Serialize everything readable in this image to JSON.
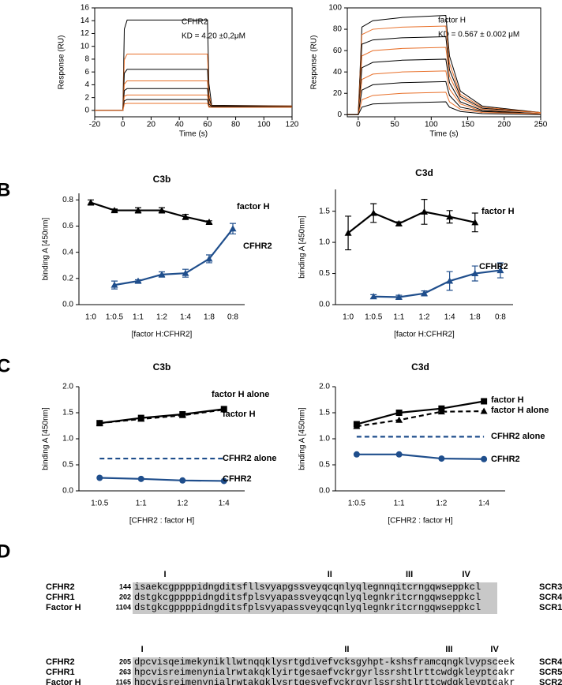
{
  "panel_labels": [
    "B",
    "C",
    "D"
  ],
  "chart_data": [
    {
      "type": "line",
      "ylabel": "Response (RU)",
      "xlabel": "Time (s)",
      "annotations": [
        "CFHR2",
        "KD = 4.20 ±0,2μM"
      ],
      "x": [
        -20,
        0,
        1,
        3,
        60,
        61,
        63,
        120
      ],
      "xlim": [
        -20,
        120
      ],
      "xticks": [
        -20,
        0,
        20,
        40,
        60,
        80,
        100,
        120
      ],
      "ylim": [
        -1,
        16
      ],
      "yticks": [
        0,
        2,
        4,
        6,
        8,
        10,
        12,
        14,
        16
      ],
      "series": [
        {
          "color": "#000000",
          "values": [
            0,
            0,
            12.7,
            14.1,
            14.1,
            4.2,
            0.8,
            0.7
          ]
        },
        {
          "color": "#e8702a",
          "values": [
            0,
            0,
            7.9,
            8.8,
            8.8,
            2.6,
            0.7,
            0.7
          ]
        },
        {
          "color": "#000000",
          "values": [
            0,
            0,
            5.8,
            6.4,
            6.4,
            1.9,
            0.7,
            0.6
          ]
        },
        {
          "color": "#e8702a",
          "values": [
            0,
            0,
            4.1,
            4.6,
            4.6,
            1.4,
            0.6,
            0.6
          ]
        },
        {
          "color": "#000000",
          "values": [
            0,
            0,
            3.1,
            3.4,
            3.4,
            1.0,
            0.6,
            0.6
          ]
        },
        {
          "color": "#e8702a",
          "values": [
            0,
            0,
            2.2,
            2.4,
            2.4,
            0.7,
            0.5,
            0.5
          ]
        },
        {
          "color": "#000000",
          "values": [
            0,
            0,
            1.5,
            1.7,
            1.7,
            0.6,
            0.5,
            0.5
          ]
        },
        {
          "color": "#e8702a",
          "values": [
            0,
            0,
            1.0,
            1.1,
            1.1,
            0.5,
            0.5,
            0.5
          ]
        }
      ]
    },
    {
      "type": "line",
      "ylabel": "Response (RU)",
      "xlabel": "Time (s)",
      "annotations": [
        "factor H",
        "KD = 0.567 ± 0.002 μM"
      ],
      "x": [
        -15,
        0,
        5,
        20,
        60,
        120,
        125,
        140,
        170,
        250
      ],
      "xlim": [
        -15,
        250
      ],
      "xticks": [
        0,
        50,
        100,
        150,
        200,
        250
      ],
      "ylim": [
        -2,
        100
      ],
      "yticks": [
        0,
        20,
        40,
        60,
        80,
        100
      ],
      "series": [
        {
          "color": "#000000",
          "values": [
            0,
            0,
            82,
            88,
            91,
            93,
            55,
            22,
            8,
            2
          ]
        },
        {
          "color": "#e8702a",
          "values": [
            0,
            0,
            75,
            80,
            82,
            83,
            48,
            19,
            7,
            2
          ]
        },
        {
          "color": "#000000",
          "values": [
            0,
            0,
            66,
            70,
            72,
            73,
            42,
            17,
            6,
            2
          ]
        },
        {
          "color": "#e8702a",
          "values": [
            0,
            0,
            55,
            60,
            62,
            63,
            36,
            15,
            5,
            2
          ]
        },
        {
          "color": "#000000",
          "values": [
            0,
            0,
            44,
            49,
            51,
            52,
            30,
            12,
            4,
            1
          ]
        },
        {
          "color": "#e8702a",
          "values": [
            0,
            0,
            33,
            38,
            40,
            41,
            24,
            10,
            3,
            1
          ]
        },
        {
          "color": "#000000",
          "values": [
            0,
            0,
            23,
            28,
            30,
            31,
            18,
            7,
            3,
            1
          ]
        },
        {
          "color": "#e8702a",
          "values": [
            0,
            0,
            14,
            18,
            20,
            21,
            12,
            5,
            2,
            1
          ]
        },
        {
          "color": "#000000",
          "values": [
            0,
            0,
            7,
            10,
            11,
            12,
            7,
            3,
            1,
            0
          ]
        }
      ]
    },
    {
      "type": "line",
      "title": "C3b",
      "ylabel": "binding A [450nm]",
      "xlabel": "[factor H:CFHR2]",
      "categories": [
        "1:0",
        "1:0.5",
        "1:1",
        "1:2",
        "1:4",
        "1:8",
        "0:8"
      ],
      "ylim": [
        0,
        0.85
      ],
      "yticks": [
        {
          "value": 0,
          "label": "0.0"
        },
        0.2,
        0.4,
        0.6,
        0.8
      ],
      "series": [
        {
          "name": "factor H",
          "color": "#000000",
          "marker": "triangle",
          "values": [
            0.78,
            0.72,
            0.72,
            0.72,
            0.67,
            0.63,
            null
          ],
          "errors": [
            0.02,
            0.01,
            0.02,
            0.02,
            0.02,
            0.01,
            null
          ]
        },
        {
          "name": "CFHR2",
          "color": "#1f4e8c",
          "marker": "triangle",
          "values": [
            null,
            0.15,
            0.18,
            0.23,
            0.24,
            0.35,
            0.58
          ],
          "errors": [
            null,
            0.03,
            0.01,
            0.02,
            0.03,
            0.03,
            0.04
          ]
        }
      ]
    },
    {
      "type": "line",
      "title": "C3d",
      "ylabel": "binding A [450nm]",
      "xlabel": "[factor H:CFHR2]",
      "categories": [
        "1:0",
        "1:0.5",
        "1:1",
        "1:2",
        "1:4",
        "1:8",
        "0:8"
      ],
      "ylim": [
        0,
        1.85
      ],
      "yticks": [
        {
          "value": 0,
          "label": "0.0"
        },
        0.5,
        {
          "value": 1,
          "label": "1.0"
        },
        1.5
      ],
      "series": [
        {
          "name": "factor H",
          "color": "#000000",
          "marker": "triangle",
          "values": [
            1.15,
            1.47,
            1.3,
            1.49,
            1.41,
            1.32,
            null
          ],
          "errors": [
            0.27,
            0.15,
            0.03,
            0.2,
            0.1,
            0.15,
            null
          ]
        },
        {
          "name": "CFHR2",
          "color": "#1f4e8c",
          "marker": "triangle",
          "values": [
            null,
            0.13,
            0.12,
            0.18,
            0.38,
            0.5,
            0.55
          ],
          "errors": [
            null,
            0.03,
            0.03,
            0.04,
            0.15,
            0.12,
            0.12
          ]
        }
      ]
    },
    {
      "type": "line",
      "title": "C3b",
      "ylabel": "binding A [450nm]",
      "xlabel": "[CFHR2 : factor H]",
      "categories": [
        "1:0.5",
        "1:1",
        "1:2",
        "1:4"
      ],
      "ylim": [
        0,
        2
      ],
      "yticks": [
        {
          "value": 0,
          "label": "0.0"
        },
        0.5,
        {
          "value": 1,
          "label": "1.0"
        },
        1.5,
        {
          "value": 2,
          "label": "2.0"
        }
      ],
      "series": [
        {
          "name": "factor H alone",
          "color": "#000000",
          "marker": "triangle",
          "dash": true,
          "values": [
            1.3,
            1.38,
            1.45,
            1.56
          ]
        },
        {
          "name": "factor H",
          "color": "#000000",
          "marker": "square",
          "values": [
            1.3,
            1.4,
            1.47,
            1.57
          ]
        },
        {
          "name": "CFHR2 alone",
          "color": "#1f4e8c",
          "marker": "none",
          "dash": true,
          "values": [
            0.62,
            0.62,
            0.62,
            0.62
          ]
        },
        {
          "name": "CFHR2",
          "color": "#1f4e8c",
          "marker": "circle",
          "values": [
            0.25,
            0.23,
            0.2,
            0.19
          ]
        }
      ]
    },
    {
      "type": "line",
      "title": "C3d",
      "ylabel": "binding A [450nm]",
      "xlabel": "[CFHR2 : factor H]",
      "categories": [
        "1:0.5",
        "1:1",
        "1:2",
        "1:4"
      ],
      "ylim": [
        0,
        2
      ],
      "yticks": [
        {
          "value": 0,
          "label": "0.0"
        },
        0.5,
        {
          "value": 1,
          "label": "1.0"
        },
        1.5,
        {
          "value": 2,
          "label": "2.0"
        }
      ],
      "series": [
        {
          "name": "factor H",
          "color": "#000000",
          "marker": "square",
          "values": [
            1.28,
            1.5,
            1.58,
            1.72
          ]
        },
        {
          "name": "factor H alone",
          "color": "#000000",
          "marker": "triangle",
          "dash": true,
          "values": [
            1.24,
            1.36,
            1.52,
            1.53
          ]
        },
        {
          "name": "CFHR2 alone",
          "color": "#1f4e8c",
          "marker": "none",
          "dash": true,
          "values": [
            1.04,
            1.04,
            1.04,
            1.04
          ]
        },
        {
          "name": "CFHR2",
          "color": "#1f4e8c",
          "marker": "circle",
          "values": [
            0.7,
            0.7,
            0.62,
            0.61
          ]
        }
      ]
    }
  ],
  "alignment": [
    {
      "numerals": [
        "I",
        "II",
        "III",
        "IV"
      ],
      "rows": [
        {
          "name": "CFHR2",
          "start": "144",
          "sequence": "isaekcgppppidngditsfllsvyapgssveyqcqnlyqlegnnqitcrngqwseppkcl",
          "domain": "SCR3"
        },
        {
          "name": "CFHR1",
          "start": "202",
          "sequence": "dstgkcgppppidngditsfplsvyapassveyqcqnlyqlegnkritcrngqwseppkcl",
          "domain": "SCR4"
        },
        {
          "name": "Factor H",
          "start": "1104",
          "sequence": "dstgkcgppppidngditsfplsvyapassveyqcqnlyqlegnkritcrngqwseppkcl",
          "domain": "SCR1"
        }
      ]
    },
    {
      "numerals": [
        "I",
        "II",
        "III",
        "IV"
      ],
      "rows": [
        {
          "name": "CFHR2",
          "start": "205",
          "sequence": "dpcvisqeimekynikllwtnqqklysrtgdivefvcksgyhpt-kshsframcqngklvypsceek",
          "domain": "SCR4"
        },
        {
          "name": "CFHR1",
          "start": "263",
          "sequence": "hpcvisreimenynialrwtakqklyirtgesaefvckrgyrlssrshtlrttcwdgkleyptcakr",
          "domain": "SCR5"
        },
        {
          "name": "Factor H",
          "start": "1165",
          "sequence": "hpcvisreimenynialrwtakqklysrtgesvefvckrgyrlssrshtlrttcwdgkleyptcakr",
          "domain": "SCR2"
        }
      ]
    }
  ]
}
